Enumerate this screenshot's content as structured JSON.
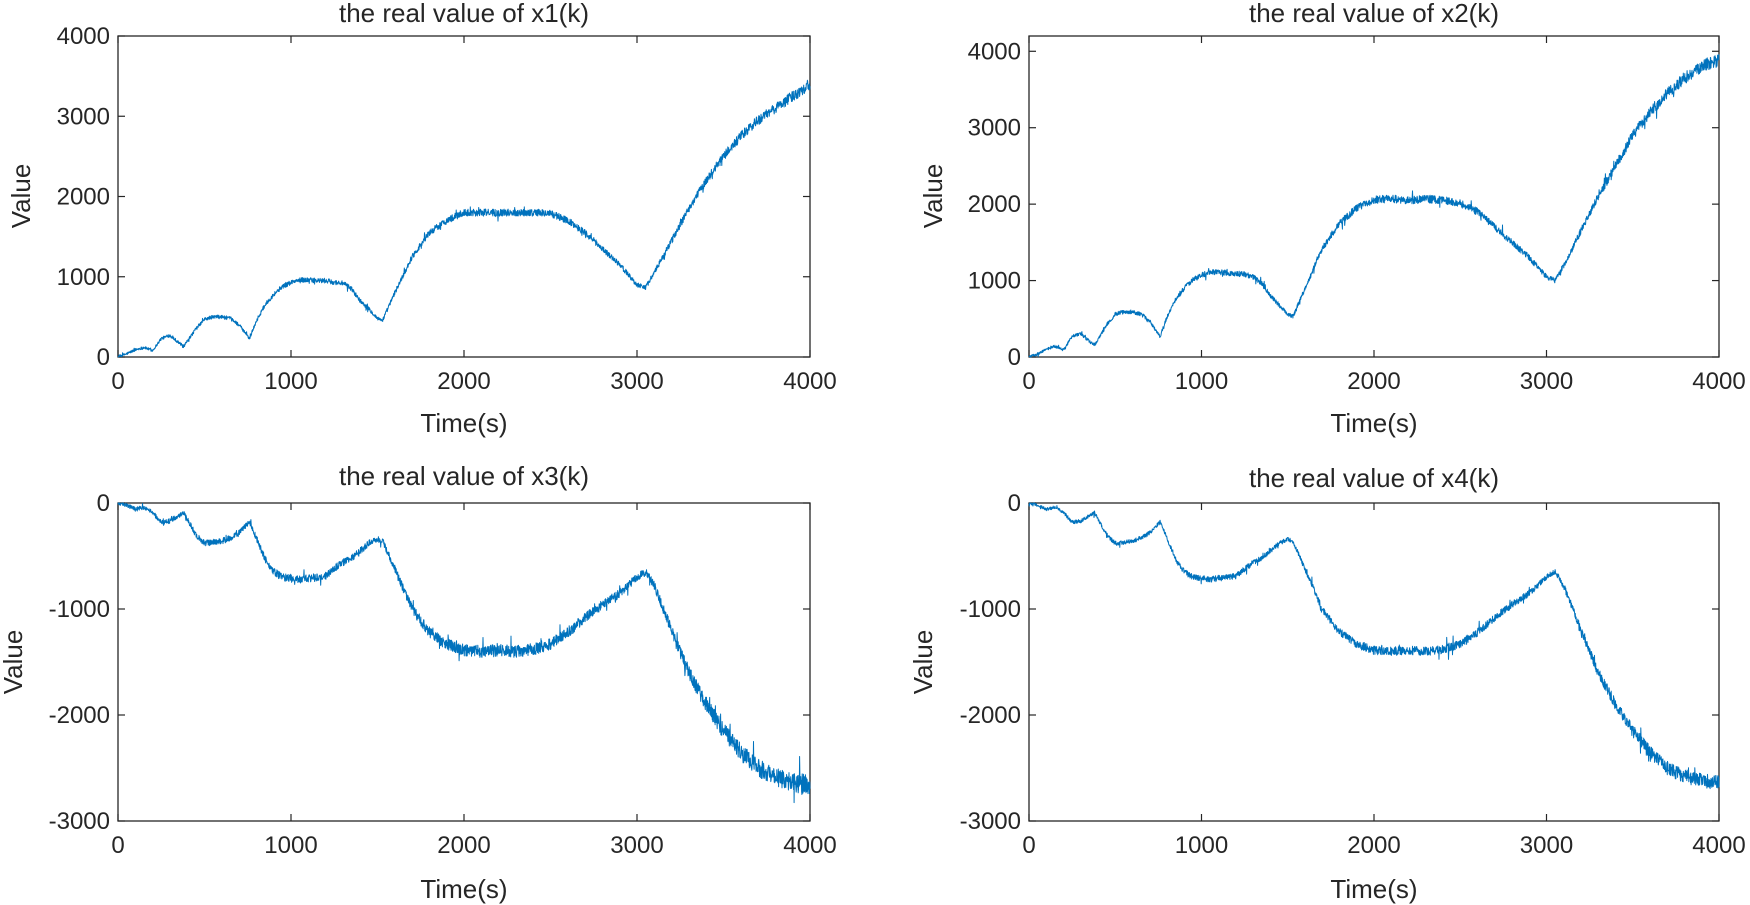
{
  "figure": {
    "series_color": "#0072BD",
    "axis_color": "#262626"
  },
  "chart_data": [
    {
      "type": "line",
      "title": "the real value of x1(k)",
      "xlabel": "Time(s)",
      "ylabel": "Value",
      "xlim": [
        0,
        4000
      ],
      "ylim": [
        0,
        4000
      ],
      "xticks": [
        0,
        1000,
        2000,
        3000,
        4000
      ],
      "yticks": [
        0,
        1000,
        2000,
        3000,
        4000
      ],
      "xtick_labels": [
        "0",
        "1000",
        "2000",
        "3000",
        "4000"
      ],
      "ytick_labels": [
        "0",
        "1000",
        "2000",
        "3000",
        "4000"
      ],
      "noise_amplitude": 60,
      "series": [
        {
          "name": "x1",
          "x": [
            0,
            50,
            100,
            150,
            200,
            250,
            300,
            380,
            450,
            500,
            550,
            600,
            650,
            700,
            760,
            800,
            850,
            900,
            950,
            1000,
            1050,
            1100,
            1150,
            1200,
            1250,
            1300,
            1350,
            1400,
            1450,
            1500,
            1530,
            1600,
            1700,
            1800,
            1900,
            2000,
            2100,
            2200,
            2300,
            2400,
            2500,
            2600,
            2700,
            2800,
            2900,
            3000,
            3050,
            3100,
            3200,
            3300,
            3400,
            3500,
            3600,
            3700,
            3800,
            3900,
            4000
          ],
          "y": [
            0,
            40,
            90,
            120,
            80,
            230,
            270,
            130,
            350,
            470,
            500,
            500,
            480,
            400,
            230,
            450,
            650,
            780,
            880,
            930,
            960,
            960,
            950,
            950,
            930,
            920,
            850,
            700,
            600,
            480,
            460,
            800,
            1250,
            1550,
            1700,
            1800,
            1800,
            1800,
            1800,
            1800,
            1790,
            1700,
            1550,
            1350,
            1150,
            900,
            870,
            1050,
            1450,
            1850,
            2200,
            2500,
            2750,
            2950,
            3100,
            3250,
            3400
          ]
        }
      ]
    },
    {
      "type": "line",
      "title": "the real value of x2(k)",
      "xlabel": "Time(s)",
      "ylabel": "Value",
      "xlim": [
        0,
        4000
      ],
      "ylim": [
        0,
        4200
      ],
      "xticks": [
        0,
        1000,
        2000,
        3000,
        4000
      ],
      "yticks": [
        0,
        1000,
        2000,
        3000,
        4000
      ],
      "xtick_labels": [
        "0",
        "1000",
        "2000",
        "3000",
        "4000"
      ],
      "ytick_labels": [
        "0",
        "1000",
        "2000",
        "3000",
        "4000"
      ],
      "noise_amplitude": 65,
      "series": [
        {
          "name": "x2",
          "x": [
            0,
            50,
            100,
            150,
            200,
            250,
            300,
            380,
            450,
            500,
            550,
            600,
            650,
            700,
            760,
            800,
            850,
            900,
            950,
            1000,
            1050,
            1100,
            1150,
            1200,
            1250,
            1300,
            1350,
            1400,
            1450,
            1500,
            1530,
            1600,
            1700,
            1800,
            1900,
            2000,
            2100,
            2200,
            2300,
            2400,
            2500,
            2600,
            2700,
            2800,
            2900,
            3000,
            3050,
            3100,
            3200,
            3300,
            3400,
            3500,
            3600,
            3700,
            3800,
            3900,
            4000
          ],
          "y": [
            0,
            40,
            100,
            140,
            90,
            270,
            300,
            150,
            420,
            560,
            590,
            590,
            560,
            470,
            270,
            520,
            760,
            900,
            1010,
            1070,
            1110,
            1110,
            1100,
            1090,
            1080,
            1050,
            960,
            800,
            680,
            560,
            530,
            900,
            1420,
            1750,
            1950,
            2060,
            2070,
            2050,
            2070,
            2050,
            2010,
            1900,
            1700,
            1500,
            1300,
            1050,
            1000,
            1200,
            1650,
            2100,
            2500,
            2900,
            3200,
            3450,
            3650,
            3800,
            3900
          ]
        }
      ]
    },
    {
      "type": "line",
      "title": "the real value of x3(k)",
      "xlabel": "Time(s)",
      "ylabel": "Value",
      "xlim": [
        0,
        4000
      ],
      "ylim": [
        -3000,
        0
      ],
      "xticks": [
        0,
        1000,
        2000,
        3000,
        4000
      ],
      "yticks": [
        -3000,
        -2000,
        -1000,
        0
      ],
      "xtick_labels": [
        "0",
        "1000",
        "2000",
        "3000",
        "4000"
      ],
      "ytick_labels": [
        "-3000",
        "-2000",
        "-1000",
        "0"
      ],
      "noise_amplitude": 75,
      "series": [
        {
          "name": "x3",
          "x": [
            0,
            50,
            100,
            150,
            200,
            250,
            300,
            380,
            450,
            500,
            550,
            600,
            650,
            700,
            760,
            800,
            850,
            900,
            950,
            1000,
            1050,
            1100,
            1150,
            1200,
            1250,
            1300,
            1350,
            1400,
            1450,
            1500,
            1530,
            1600,
            1700,
            1800,
            1900,
            2000,
            2100,
            2200,
            2300,
            2400,
            2500,
            2600,
            2700,
            2800,
            2900,
            3000,
            3050,
            3100,
            3200,
            3300,
            3400,
            3500,
            3600,
            3700,
            3800,
            3900,
            4000
          ],
          "y": [
            0,
            -20,
            -60,
            -40,
            -90,
            -180,
            -170,
            -90,
            -300,
            -380,
            -370,
            -360,
            -330,
            -280,
            -180,
            -330,
            -530,
            -650,
            -700,
            -710,
            -720,
            -710,
            -700,
            -690,
            -620,
            -560,
            -520,
            -450,
            -380,
            -340,
            -360,
            -620,
            -1000,
            -1220,
            -1330,
            -1390,
            -1400,
            -1390,
            -1400,
            -1380,
            -1330,
            -1220,
            -1080,
            -960,
            -850,
            -700,
            -650,
            -780,
            -1200,
            -1600,
            -1900,
            -2150,
            -2350,
            -2500,
            -2580,
            -2630,
            -2660
          ]
        }
      ]
    },
    {
      "type": "line",
      "title": "the real value of x4(k)",
      "xlabel": "Time(s)",
      "ylabel": "Value",
      "xlim": [
        0,
        4000
      ],
      "ylim": [
        -3000,
        0
      ],
      "xticks": [
        0,
        1000,
        2000,
        3000,
        4000
      ],
      "yticks": [
        -3000,
        -2000,
        -1000,
        0
      ],
      "xtick_labels": [
        "0",
        "1000",
        "2000",
        "3000",
        "4000"
      ],
      "ytick_labels": [
        "-3000",
        "-2000",
        "-1000",
        "0"
      ],
      "noise_amplitude": 55,
      "series": [
        {
          "name": "x4",
          "x": [
            0,
            50,
            100,
            150,
            200,
            250,
            300,
            380,
            450,
            500,
            550,
            600,
            650,
            700,
            760,
            800,
            850,
            900,
            950,
            1000,
            1050,
            1100,
            1150,
            1200,
            1250,
            1300,
            1350,
            1400,
            1450,
            1500,
            1530,
            1600,
            1700,
            1800,
            1900,
            2000,
            2100,
            2200,
            2300,
            2400,
            2500,
            2600,
            2700,
            2800,
            2900,
            3000,
            3050,
            3100,
            3200,
            3300,
            3400,
            3500,
            3600,
            3700,
            3800,
            3900,
            4000
          ],
          "y": [
            0,
            -20,
            -60,
            -40,
            -90,
            -180,
            -170,
            -90,
            -300,
            -380,
            -370,
            -360,
            -330,
            -280,
            -180,
            -330,
            -530,
            -650,
            -700,
            -710,
            -720,
            -710,
            -700,
            -690,
            -620,
            -560,
            -520,
            -450,
            -380,
            -340,
            -360,
            -620,
            -1000,
            -1220,
            -1330,
            -1390,
            -1400,
            -1390,
            -1400,
            -1380,
            -1330,
            -1220,
            -1080,
            -960,
            -850,
            -700,
            -650,
            -780,
            -1200,
            -1600,
            -1900,
            -2150,
            -2350,
            -2500,
            -2580,
            -2620,
            -2640
          ]
        }
      ]
    }
  ]
}
